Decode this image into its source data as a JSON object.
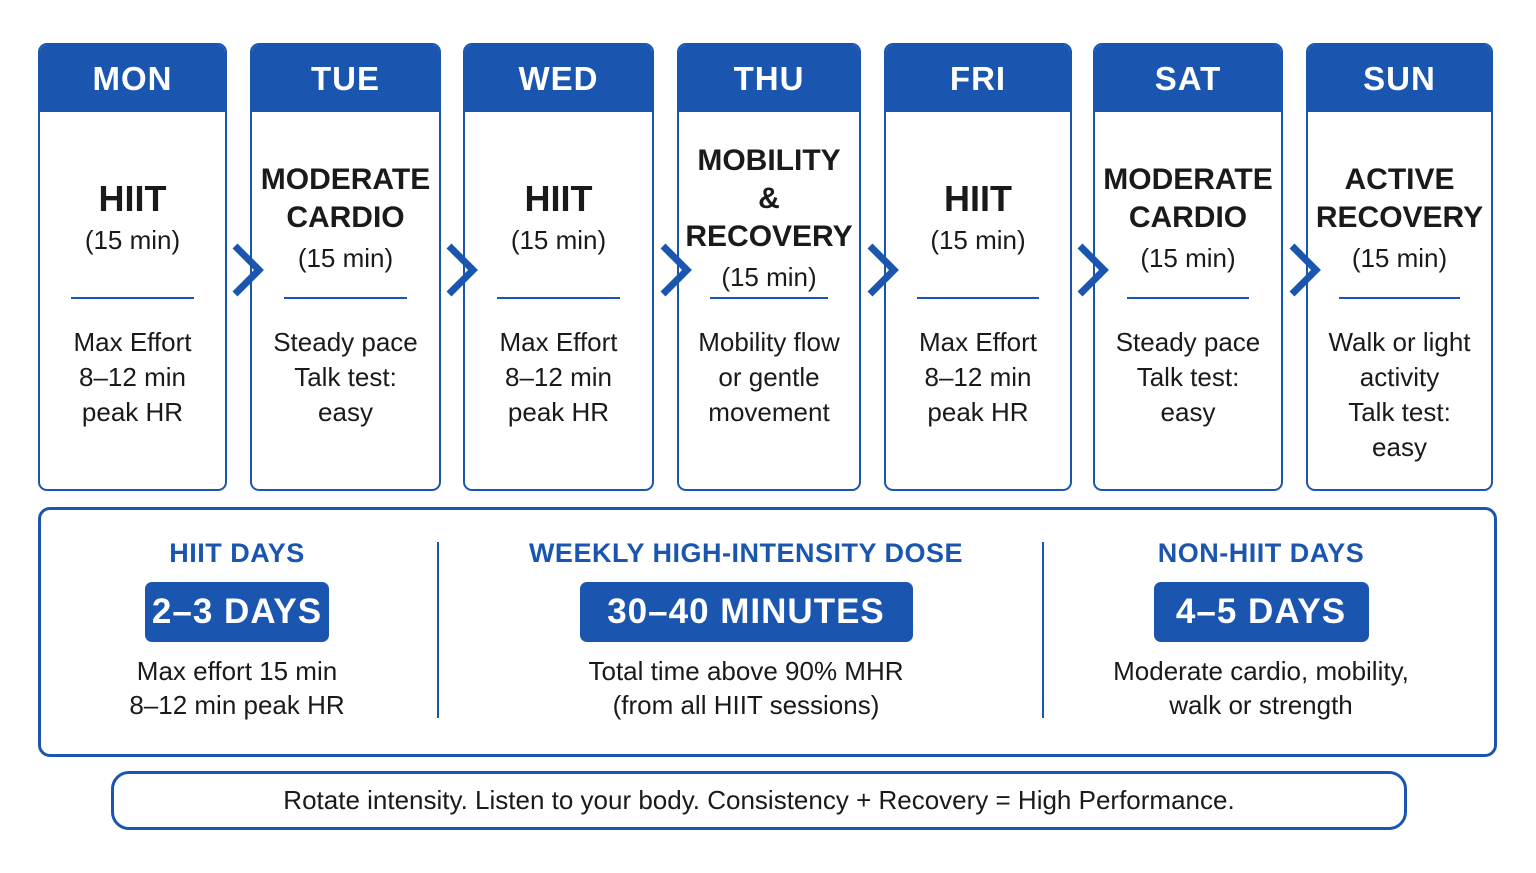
{
  "days": [
    {
      "day": "MON",
      "title_lines": [
        "HIIT"
      ],
      "duration": "(15 min)",
      "detail_lines": [
        "Max Effort",
        "8–12 min",
        "peak HR"
      ]
    },
    {
      "day": "TUE",
      "title_lines": [
        "MODERATE",
        "CARDIO"
      ],
      "duration": "(15 min)",
      "detail_lines": [
        "Steady pace",
        "Talk test:",
        "easy"
      ]
    },
    {
      "day": "WED",
      "title_lines": [
        "HIIT"
      ],
      "duration": "(15 min)",
      "detail_lines": [
        "Max Effort",
        "8–12 min",
        "peak HR"
      ]
    },
    {
      "day": "THU",
      "title_lines": [
        "MOBILITY",
        "& RECOVERY"
      ],
      "duration": "(15 min)",
      "detail_lines": [
        "Mobility flow",
        "or gentle",
        "movement"
      ]
    },
    {
      "day": "FRI",
      "title_lines": [
        "HIIT"
      ],
      "duration": "(15 min)",
      "detail_lines": [
        "Max Effort",
        "8–12 min",
        "peak HR"
      ]
    },
    {
      "day": "SAT",
      "title_lines": [
        "MODERATE",
        "CARDIO"
      ],
      "duration": "(15 min)",
      "detail_lines": [
        "Steady pace",
        "Talk test:",
        "easy"
      ]
    },
    {
      "day": "SUN",
      "title_lines": [
        "ACTIVE",
        "RECOVERY"
      ],
      "duration": "(15 min)",
      "detail_lines": [
        "Walk or light",
        "activity",
        "Talk test:",
        "easy"
      ]
    }
  ],
  "summary": {
    "hiit": {
      "label": "HIIT DAYS",
      "value": "2–3 DAYS",
      "desc_lines": [
        "Max effort 15 min",
        "8–12 min peak HR"
      ]
    },
    "dose": {
      "label": "WEEKLY HIGH-INTENSITY DOSE",
      "value": "30–40 MINUTES",
      "desc_lines": [
        "Total time above 90% MHR",
        "(from all HIIT sessions)"
      ]
    },
    "non_hiit": {
      "label": "NON-HIIT DAYS",
      "value": "4–5 DAYS",
      "desc_lines": [
        "Moderate cardio, mobility,",
        "walk or strength"
      ]
    }
  },
  "footer": "Rotate intensity. Listen to your body. Consistency + Recovery = High Performance.",
  "colors": {
    "accent": "#1a56b0",
    "text": "#1a1a1a",
    "background": "#ffffff"
  },
  "icons": {
    "connector": "chevron-right-icon"
  }
}
